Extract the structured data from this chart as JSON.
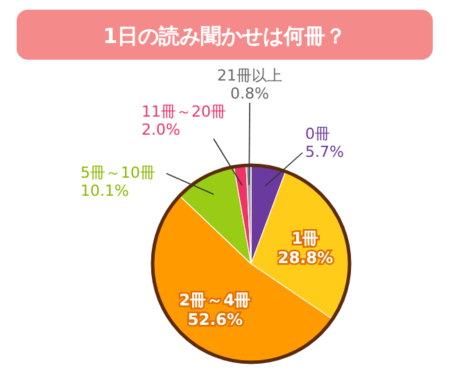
{
  "chart_data": {
    "type": "pie",
    "title": "1日の読み聞かせは何冊？",
    "categories": [
      "0冊",
      "1冊",
      "2冊～4冊",
      "5冊～10冊",
      "11冊～20冊",
      "21冊以上"
    ],
    "values": [
      5.7,
      28.8,
      52.6,
      10.1,
      2.0,
      0.8
    ],
    "value_labels": [
      "5.7%",
      "28.8%",
      "52.6%",
      "10.1%",
      "2.0%",
      "0.8%"
    ],
    "colors": [
      "#6a3a9e",
      "#ffcc1a",
      "#ff9a00",
      "#99cc14",
      "#ee3366",
      "#a0a0a0"
    ]
  }
}
